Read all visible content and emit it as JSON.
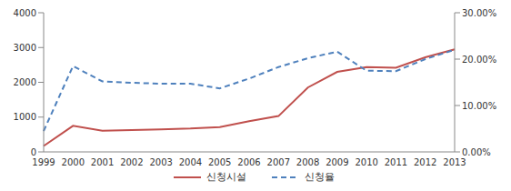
{
  "chart_data": {
    "type": "line",
    "categories": [
      "1999",
      "2000",
      "2001",
      "2002",
      "2003",
      "2004",
      "2005",
      "2006",
      "2007",
      "2008",
      "2009",
      "2010",
      "2011",
      "2012",
      "2013"
    ],
    "series": [
      {
        "name": "신청시설",
        "color": "#c0504d",
        "line_style": "solid",
        "axis": "y",
        "values": [
          170,
          750,
          610,
          630,
          650,
          670,
          710,
          880,
          1030,
          1850,
          2300,
          2440,
          2420,
          2720,
          2950
        ]
      },
      {
        "name": "신청율",
        "color": "#4f81bd",
        "line_style": "dashed",
        "axis": "y2",
        "values": [
          4.5,
          18.5,
          15.2,
          14.9,
          14.7,
          14.7,
          13.7,
          15.8,
          18.3,
          20.2,
          21.6,
          17.5,
          17.4,
          20.0,
          22.0
        ]
      }
    ],
    "ylim": [
      0,
      4000
    ],
    "yticks": [
      0,
      1000,
      2000,
      3000,
      4000
    ],
    "y2lim": [
      0,
      30
    ],
    "y2ticks": [
      {
        "value": 0,
        "label": "0.00%"
      },
      {
        "value": 10,
        "label": "10.00%"
      },
      {
        "value": 20,
        "label": "20.00%"
      },
      {
        "value": 30,
        "label": "30.00%"
      }
    ],
    "grid": false,
    "legend": "bottom"
  }
}
